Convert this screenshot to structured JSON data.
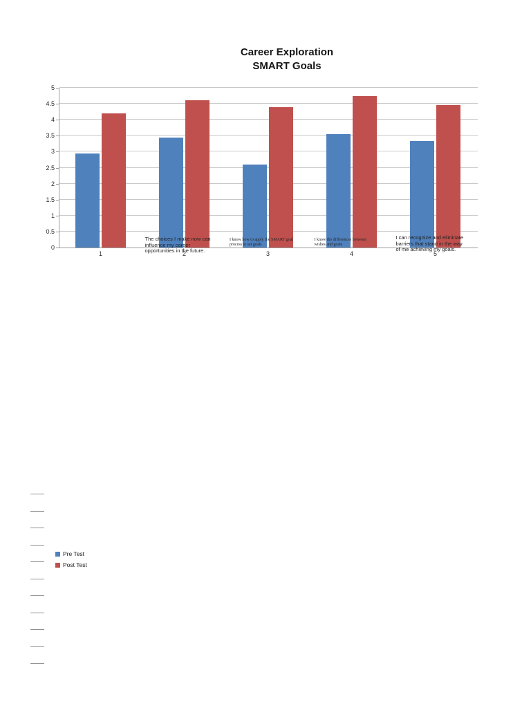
{
  "document": {
    "type": "page-with-embedded-chart"
  },
  "chart_data": {
    "type": "bar",
    "title_lines": [
      "Career Exploration",
      "SMART Goals"
    ],
    "title": "Career Exploration SMART Goals",
    "categories": [
      "1",
      "2",
      "3",
      "4",
      "5"
    ],
    "category_descriptions": [
      "",
      "The choices I make now can influence my career opportunities in the future.",
      "I know how to apply the SMART goal process to set goals",
      "I know the differences between wishes and goals",
      "I can recognize and eliminate barriers that stand in the way of me achieving my goals."
    ],
    "series": [
      {
        "name": "Pre Test",
        "color": "#4f81bd",
        "values": [
          2.95,
          3.45,
          2.6,
          3.55,
          3.33
        ]
      },
      {
        "name": "Post Test",
        "color": "#c0504d",
        "values": [
          4.2,
          4.6,
          4.4,
          4.75,
          4.45
        ]
      }
    ],
    "y_ticks": [
      0,
      0.5,
      1,
      1.5,
      2,
      2.5,
      3,
      3.5,
      4,
      4.5,
      5
    ],
    "ylim": [
      0,
      5
    ],
    "grid": true,
    "legend_position": "bottom-left"
  }
}
